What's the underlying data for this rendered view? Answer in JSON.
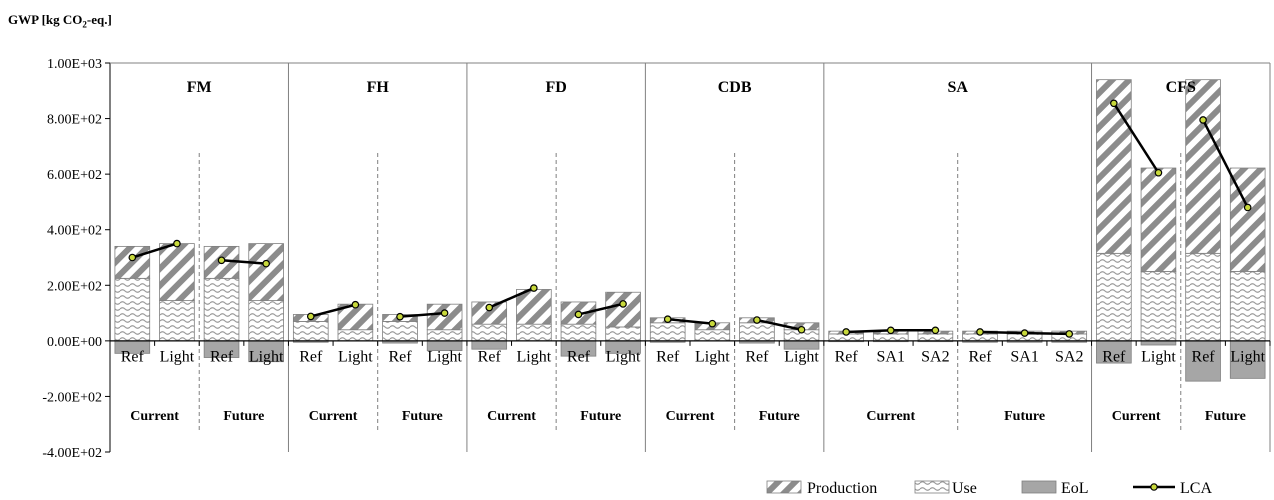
{
  "chart_data": {
    "type": "bar",
    "stacked": true,
    "ylabel_pre": "GWP [kg CO",
    "ylabel_sub": "2",
    "ylabel_post": "-eq.]",
    "ylim": [
      -400,
      1000
    ],
    "yticks": [
      {
        "value": 1000,
        "label": "1.00E+03"
      },
      {
        "value": 800,
        "label": "8.00E+02"
      },
      {
        "value": 600,
        "label": "6.00E+02"
      },
      {
        "value": 400,
        "label": "4.00E+02"
      },
      {
        "value": 200,
        "label": "2.00E+02"
      },
      {
        "value": 0,
        "label": "0.00E+00"
      },
      {
        "value": -200,
        "label": "-2.00E+02"
      },
      {
        "value": -400,
        "label": "-4.00E+02"
      }
    ],
    "legend": [
      {
        "name": "Production",
        "type": "production"
      },
      {
        "name": "Use",
        "type": "use"
      },
      {
        "name": "EoL",
        "type": "eol"
      },
      {
        "name": "LCA",
        "type": "lca"
      }
    ],
    "colors": {
      "eol": "#a6a6a6",
      "hatch": "#8c8c8c",
      "line": "#000000",
      "marker": "#c8d93c",
      "frame": "#808080"
    },
    "groups": [
      {
        "name": "FM",
        "scenarios": [
          {
            "name": "Current",
            "bars": [
              {
                "label": "Ref",
                "use": 225,
                "production": 115,
                "eol": -45,
                "lca": 300
              },
              {
                "label": "Light",
                "use": 145,
                "production": 205,
                "eol": 0,
                "lca": 350
              }
            ]
          },
          {
            "name": "Future",
            "bars": [
              {
                "label": "Ref",
                "use": 225,
                "production": 115,
                "eol": -60,
                "lca": 290
              },
              {
                "label": "Light",
                "use": 145,
                "production": 205,
                "eol": -75,
                "lca": 278
              }
            ]
          }
        ]
      },
      {
        "name": "FH",
        "scenarios": [
          {
            "name": "Current",
            "bars": [
              {
                "label": "Ref",
                "use": 70,
                "production": 25,
                "eol": -5,
                "lca": 88
              },
              {
                "label": "Light",
                "use": 40,
                "production": 92,
                "eol": 0,
                "lca": 130
              }
            ]
          },
          {
            "name": "Future",
            "bars": [
              {
                "label": "Ref",
                "use": 70,
                "production": 25,
                "eol": -8,
                "lca": 87
              },
              {
                "label": "Light",
                "use": 40,
                "production": 92,
                "eol": -35,
                "lca": 100
              }
            ]
          }
        ]
      },
      {
        "name": "FD",
        "scenarios": [
          {
            "name": "Current",
            "bars": [
              {
                "label": "Ref",
                "use": 60,
                "production": 80,
                "eol": -30,
                "lca": 120
              },
              {
                "label": "Light",
                "use": 60,
                "production": 125,
                "eol": 0,
                "lca": 190
              }
            ]
          },
          {
            "name": "Future",
            "bars": [
              {
                "label": "Ref",
                "use": 60,
                "production": 80,
                "eol": -55,
                "lca": 95
              },
              {
                "label": "Light",
                "use": 50,
                "production": 125,
                "eol": -45,
                "lca": 133
              }
            ]
          }
        ]
      },
      {
        "name": "CDB",
        "scenarios": [
          {
            "name": "Current",
            "bars": [
              {
                "label": "Ref",
                "use": 65,
                "production": 18,
                "eol": -5,
                "lca": 78
              },
              {
                "label": "Light",
                "use": 40,
                "production": 25,
                "eol": 0,
                "lca": 62
              }
            ]
          },
          {
            "name": "Future",
            "bars": [
              {
                "label": "Ref",
                "use": 65,
                "production": 18,
                "eol": -8,
                "lca": 75
              },
              {
                "label": "Light",
                "use": 40,
                "production": 25,
                "eol": -30,
                "lca": 40
              }
            ]
          }
        ]
      },
      {
        "name": "SA",
        "scenarios": [
          {
            "name": "Current",
            "bars": [
              {
                "label": "Ref",
                "use": 25,
                "production": 10,
                "eol": -3,
                "lca": 32
              },
              {
                "label": "SA1",
                "use": 25,
                "production": 10,
                "eol": -3,
                "lca": 38
              },
              {
                "label": "SA2",
                "use": 25,
                "production": 10,
                "eol": -3,
                "lca": 38
              }
            ]
          },
          {
            "name": "Future",
            "bars": [
              {
                "label": "Ref",
                "use": 25,
                "production": 10,
                "eol": -5,
                "lca": 32
              },
              {
                "label": "SA1",
                "use": 25,
                "production": 10,
                "eol": -5,
                "lca": 28
              },
              {
                "label": "SA2",
                "use": 25,
                "production": 10,
                "eol": -5,
                "lca": 25
              }
            ]
          }
        ]
      },
      {
        "name": "CFS",
        "scenarios": [
          {
            "name": "Current",
            "bars": [
              {
                "label": "Ref",
                "use": 315,
                "production": 625,
                "eol": -80,
                "lca": 855
              },
              {
                "label": "Light",
                "use": 250,
                "production": 372,
                "eol": -15,
                "lca": 605
              }
            ]
          },
          {
            "name": "Future",
            "bars": [
              {
                "label": "Ref",
                "use": 315,
                "production": 625,
                "eol": -145,
                "lca": 795
              },
              {
                "label": "Light",
                "use": 250,
                "production": 372,
                "eol": -135,
                "lca": 480
              }
            ]
          }
        ]
      }
    ]
  }
}
